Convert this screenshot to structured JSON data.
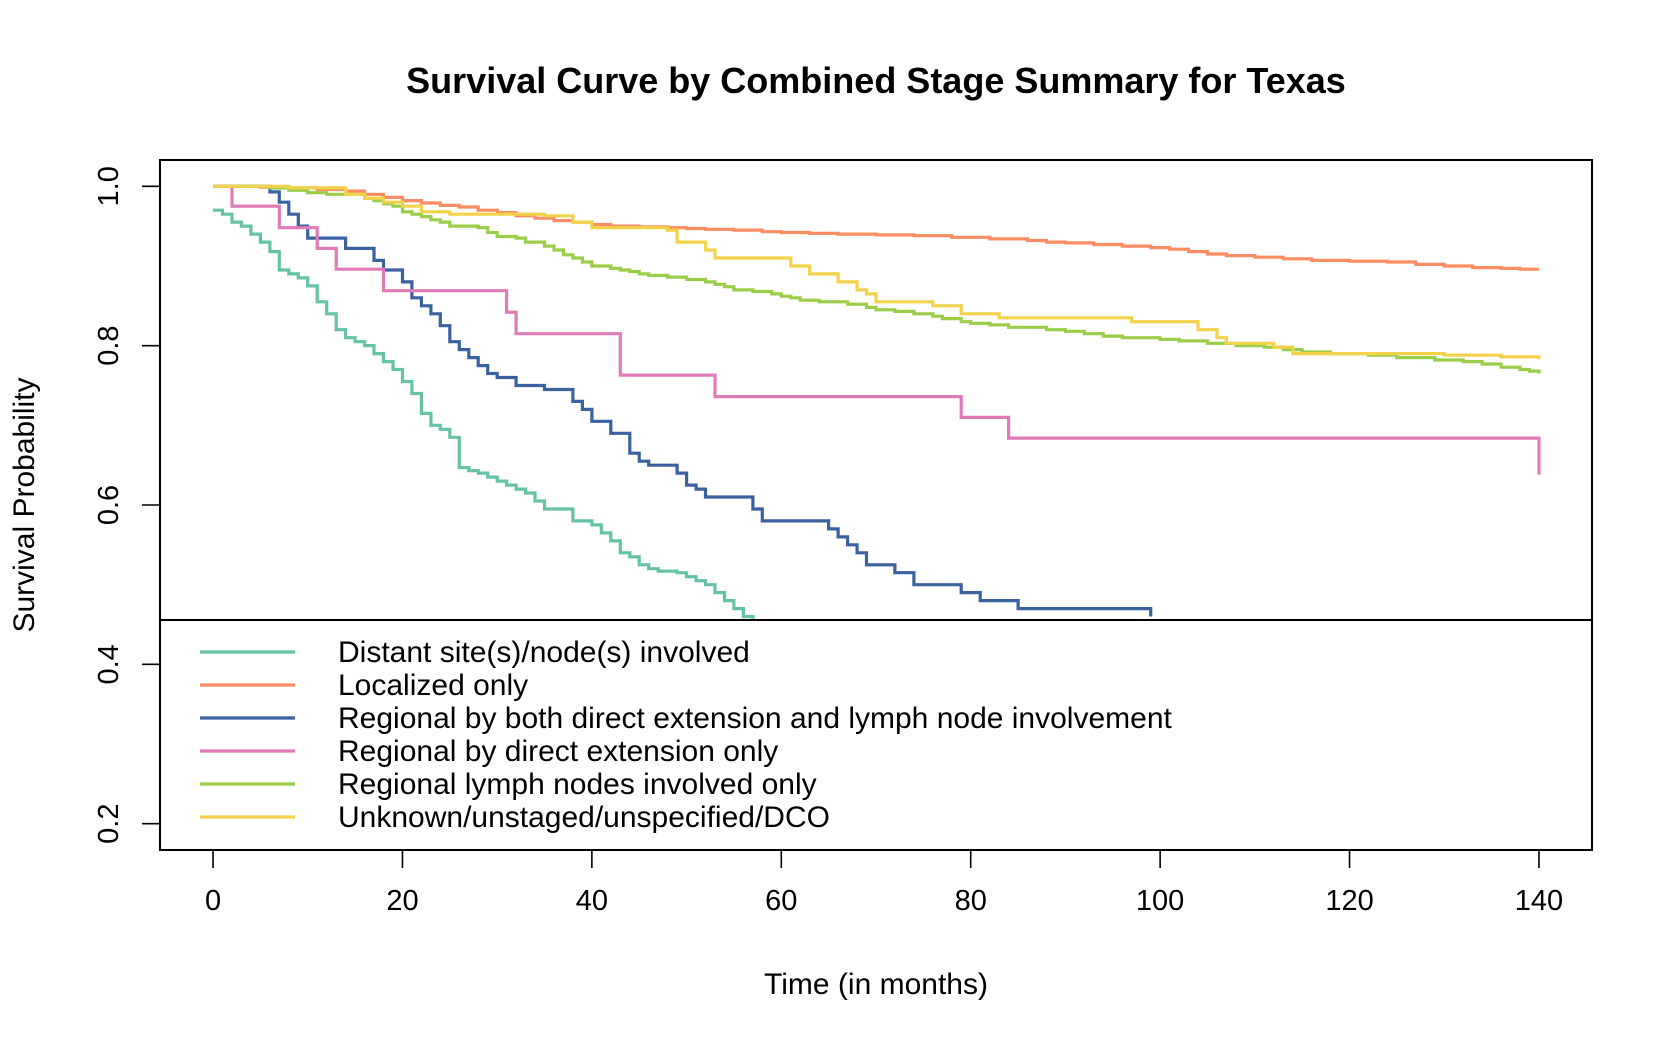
{
  "chart_data": {
    "type": "line",
    "step": true,
    "title": "Survival Curve by Combined Stage Summary for Texas",
    "xlabel": "Time (in months)",
    "ylabel": "Survival Probability",
    "xlim": [
      -5.6,
      145.6
    ],
    "ylim": [
      0.167,
      1.033
    ],
    "x_ticks": [
      0,
      20,
      40,
      60,
      80,
      100,
      120,
      140
    ],
    "y_ticks": [
      0.2,
      0.4,
      0.6,
      0.8,
      1.0
    ],
    "x_tick_labels": [
      "0",
      "20",
      "40",
      "60",
      "80",
      "100",
      "120",
      "140"
    ],
    "y_tick_labels": [
      "0.2",
      "0.4",
      "0.6",
      "0.8",
      "1.0"
    ],
    "grid": false,
    "legend_position": "inside-bottom",
    "legend_covers_from_y": 0.2,
    "legend_covers_to_y": 0.6,
    "series": [
      {
        "name": "Distant site(s)/node(s) involved",
        "color": "#66c2a5",
        "points": [
          [
            0,
            0.97
          ],
          [
            1,
            0.965
          ],
          [
            2,
            0.955
          ],
          [
            3,
            0.95
          ],
          [
            4,
            0.94
          ],
          [
            5,
            0.93
          ],
          [
            6,
            0.918
          ],
          [
            7,
            0.895
          ],
          [
            8,
            0.89
          ],
          [
            9,
            0.885
          ],
          [
            10,
            0.875
          ],
          [
            11,
            0.855
          ],
          [
            12,
            0.84
          ],
          [
            13,
            0.82
          ],
          [
            14,
            0.81
          ],
          [
            15,
            0.805
          ],
          [
            16,
            0.8
          ],
          [
            17,
            0.79
          ],
          [
            18,
            0.78
          ],
          [
            19,
            0.77
          ],
          [
            20,
            0.755
          ],
          [
            21,
            0.74
          ],
          [
            22,
            0.715
          ],
          [
            23,
            0.7
          ],
          [
            24,
            0.695
          ],
          [
            25,
            0.685
          ],
          [
            26,
            0.647
          ],
          [
            27,
            0.643
          ],
          [
            28,
            0.64
          ],
          [
            29,
            0.635
          ],
          [
            30,
            0.63
          ],
          [
            31,
            0.625
          ],
          [
            32,
            0.62
          ],
          [
            33,
            0.615
          ],
          [
            34,
            0.605
          ],
          [
            35,
            0.595
          ],
          [
            38,
            0.58
          ],
          [
            40,
            0.575
          ],
          [
            41,
            0.565
          ],
          [
            42,
            0.555
          ],
          [
            43,
            0.54
          ],
          [
            44,
            0.535
          ],
          [
            45,
            0.525
          ],
          [
            46,
            0.52
          ],
          [
            47,
            0.517
          ],
          [
            49,
            0.515
          ],
          [
            50,
            0.51
          ],
          [
            51,
            0.505
          ],
          [
            52,
            0.5
          ],
          [
            53,
            0.49
          ],
          [
            54,
            0.48
          ],
          [
            55,
            0.47
          ],
          [
            56,
            0.46
          ],
          [
            57,
            0.455
          ]
        ]
      },
      {
        "name": "Localized only",
        "color": "#fc8d62",
        "points": [
          [
            0,
            1.0
          ],
          [
            5,
            0.999
          ],
          [
            8,
            0.998
          ],
          [
            11,
            0.996
          ],
          [
            14,
            0.994
          ],
          [
            16,
            0.99
          ],
          [
            18,
            0.986
          ],
          [
            20,
            0.982
          ],
          [
            22,
            0.979
          ],
          [
            24,
            0.976
          ],
          [
            26,
            0.974
          ],
          [
            28,
            0.97
          ],
          [
            30,
            0.967
          ],
          [
            32,
            0.963
          ],
          [
            34,
            0.96
          ],
          [
            36,
            0.957
          ],
          [
            38,
            0.955
          ],
          [
            40,
            0.952
          ],
          [
            42,
            0.95
          ],
          [
            45,
            0.949
          ],
          [
            48,
            0.948
          ],
          [
            50,
            0.947
          ],
          [
            52,
            0.946
          ],
          [
            55,
            0.945
          ],
          [
            58,
            0.943
          ],
          [
            60,
            0.942
          ],
          [
            63,
            0.941
          ],
          [
            66,
            0.94
          ],
          [
            70,
            0.939
          ],
          [
            74,
            0.938
          ],
          [
            78,
            0.936
          ],
          [
            82,
            0.934
          ],
          [
            86,
            0.932
          ],
          [
            88,
            0.93
          ],
          [
            90,
            0.929
          ],
          [
            93,
            0.927
          ],
          [
            96,
            0.925
          ],
          [
            99,
            0.923
          ],
          [
            101,
            0.921
          ],
          [
            103,
            0.918
          ],
          [
            105,
            0.915
          ],
          [
            107,
            0.913
          ],
          [
            110,
            0.911
          ],
          [
            113,
            0.909
          ],
          [
            116,
            0.907
          ],
          [
            120,
            0.906
          ],
          [
            124,
            0.905
          ],
          [
            127,
            0.902
          ],
          [
            130,
            0.9
          ],
          [
            133,
            0.898
          ],
          [
            136,
            0.897
          ],
          [
            138,
            0.896
          ],
          [
            140,
            0.896
          ]
        ]
      },
      {
        "name": "Regional by both direct extension and lymph node involvement",
        "color": "#3b62a0",
        "points": [
          [
            0,
            1.0
          ],
          [
            6,
            0.993
          ],
          [
            7,
            0.98
          ],
          [
            8,
            0.965
          ],
          [
            9,
            0.95
          ],
          [
            10,
            0.935
          ],
          [
            14,
            0.922
          ],
          [
            17,
            0.907
          ],
          [
            18,
            0.895
          ],
          [
            20,
            0.88
          ],
          [
            21,
            0.86
          ],
          [
            22,
            0.85
          ],
          [
            23,
            0.84
          ],
          [
            24,
            0.825
          ],
          [
            25,
            0.805
          ],
          [
            26,
            0.795
          ],
          [
            27,
            0.785
          ],
          [
            28,
            0.775
          ],
          [
            29,
            0.765
          ],
          [
            30,
            0.76
          ],
          [
            32,
            0.75
          ],
          [
            35,
            0.745
          ],
          [
            38,
            0.73
          ],
          [
            39,
            0.72
          ],
          [
            40,
            0.705
          ],
          [
            42,
            0.69
          ],
          [
            44,
            0.665
          ],
          [
            45,
            0.655
          ],
          [
            46,
            0.65
          ],
          [
            49,
            0.64
          ],
          [
            50,
            0.625
          ],
          [
            51,
            0.62
          ],
          [
            52,
            0.61
          ],
          [
            57,
            0.595
          ],
          [
            58,
            0.58
          ],
          [
            65,
            0.57
          ],
          [
            66,
            0.56
          ],
          [
            67,
            0.55
          ],
          [
            68,
            0.54
          ],
          [
            69,
            0.525
          ],
          [
            72,
            0.515
          ],
          [
            74,
            0.5
          ],
          [
            79,
            0.49
          ],
          [
            81,
            0.48
          ],
          [
            85,
            0.47
          ],
          [
            99,
            0.46
          ]
        ]
      },
      {
        "name": "Regional by direct extension only",
        "color": "#e07ab8",
        "points": [
          [
            0,
            1.0
          ],
          [
            2,
            0.975
          ],
          [
            7,
            0.948
          ],
          [
            11,
            0.922
          ],
          [
            13,
            0.896
          ],
          [
            18,
            0.869
          ],
          [
            31,
            0.842
          ],
          [
            32,
            0.815
          ],
          [
            43,
            0.763
          ],
          [
            53,
            0.736
          ],
          [
            79,
            0.71
          ],
          [
            84,
            0.684
          ],
          [
            140,
            0.638
          ]
        ]
      },
      {
        "name": "Regional lymph nodes involved only",
        "color": "#9acd48",
        "points": [
          [
            0,
            1.0
          ],
          [
            6,
            0.998
          ],
          [
            8,
            0.995
          ],
          [
            10,
            0.992
          ],
          [
            12,
            0.99
          ],
          [
            16,
            0.985
          ],
          [
            17,
            0.982
          ],
          [
            18,
            0.978
          ],
          [
            19,
            0.975
          ],
          [
            20,
            0.968
          ],
          [
            21,
            0.965
          ],
          [
            22,
            0.962
          ],
          [
            23,
            0.958
          ],
          [
            24,
            0.955
          ],
          [
            25,
            0.95
          ],
          [
            28,
            0.948
          ],
          [
            29,
            0.942
          ],
          [
            30,
            0.937
          ],
          [
            32,
            0.935
          ],
          [
            33,
            0.93
          ],
          [
            35,
            0.925
          ],
          [
            36,
            0.92
          ],
          [
            37,
            0.914
          ],
          [
            38,
            0.91
          ],
          [
            39,
            0.905
          ],
          [
            40,
            0.9
          ],
          [
            42,
            0.897
          ],
          [
            43,
            0.895
          ],
          [
            44,
            0.893
          ],
          [
            45,
            0.89
          ],
          [
            46,
            0.888
          ],
          [
            48,
            0.886
          ],
          [
            50,
            0.883
          ],
          [
            52,
            0.88
          ],
          [
            53,
            0.877
          ],
          [
            54,
            0.874
          ],
          [
            55,
            0.87
          ],
          [
            57,
            0.868
          ],
          [
            59,
            0.865
          ],
          [
            60,
            0.862
          ],
          [
            61,
            0.86
          ],
          [
            62,
            0.857
          ],
          [
            64,
            0.855
          ],
          [
            67,
            0.852
          ],
          [
            69,
            0.848
          ],
          [
            70,
            0.845
          ],
          [
            72,
            0.843
          ],
          [
            74,
            0.84
          ],
          [
            76,
            0.837
          ],
          [
            77,
            0.834
          ],
          [
            79,
            0.83
          ],
          [
            80,
            0.828
          ],
          [
            82,
            0.826
          ],
          [
            84,
            0.823
          ],
          [
            88,
            0.82
          ],
          [
            90,
            0.818
          ],
          [
            92,
            0.815
          ],
          [
            94,
            0.812
          ],
          [
            96,
            0.81
          ],
          [
            100,
            0.808
          ],
          [
            102,
            0.806
          ],
          [
            105,
            0.803
          ],
          [
            108,
            0.8
          ],
          [
            111,
            0.798
          ],
          [
            113,
            0.795
          ],
          [
            115,
            0.792
          ],
          [
            118,
            0.79
          ],
          [
            122,
            0.788
          ],
          [
            125,
            0.785
          ],
          [
            129,
            0.782
          ],
          [
            132,
            0.78
          ],
          [
            134,
            0.777
          ],
          [
            136,
            0.773
          ],
          [
            138,
            0.77
          ],
          [
            139,
            0.768
          ],
          [
            140,
            0.765
          ]
        ]
      },
      {
        "name": "Unknown/unstaged/unspecified/DCO",
        "color": "#f2d24b",
        "points": [
          [
            0,
            1.0
          ],
          [
            8,
            0.998
          ],
          [
            14,
            0.99
          ],
          [
            16,
            0.985
          ],
          [
            18,
            0.98
          ],
          [
            20,
            0.975
          ],
          [
            22,
            0.968
          ],
          [
            25,
            0.965
          ],
          [
            35,
            0.963
          ],
          [
            38,
            0.955
          ],
          [
            40,
            0.948
          ],
          [
            48,
            0.945
          ],
          [
            49,
            0.93
          ],
          [
            52,
            0.92
          ],
          [
            53,
            0.91
          ],
          [
            61,
            0.9
          ],
          [
            63,
            0.89
          ],
          [
            66,
            0.88
          ],
          [
            68,
            0.87
          ],
          [
            69,
            0.865
          ],
          [
            70,
            0.855
          ],
          [
            76,
            0.85
          ],
          [
            79,
            0.84
          ],
          [
            83,
            0.835
          ],
          [
            97,
            0.83
          ],
          [
            104,
            0.82
          ],
          [
            106,
            0.81
          ],
          [
            107,
            0.803
          ],
          [
            112,
            0.798
          ],
          [
            114,
            0.79
          ],
          [
            130,
            0.788
          ],
          [
            136,
            0.786
          ],
          [
            140,
            0.783
          ]
        ]
      }
    ]
  }
}
